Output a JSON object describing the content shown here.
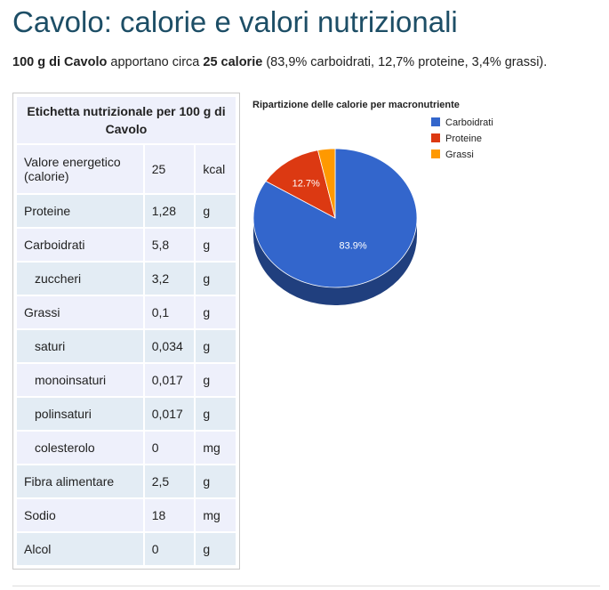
{
  "page": {
    "title": "Cavolo: calorie e valori nutrizionali",
    "summary": {
      "amount": "100 g di Cavolo",
      "text1": " apportano circa ",
      "calories": "25 calorie",
      "text2": " (83,9% carboidrati, 12,7% proteine, 3,4% grassi)."
    }
  },
  "nutrition_table": {
    "header": "Etichetta nutrizionale per 100 g di Cavolo",
    "rows": [
      {
        "name": "Valore energetico (calorie)",
        "value": "25",
        "unit": "kcal"
      },
      {
        "name": "Proteine",
        "value": "1,28",
        "unit": "g"
      },
      {
        "name": "Carboidrati",
        "value": "5,8",
        "unit": "g"
      },
      {
        "name": "zuccheri",
        "value": "3,2",
        "unit": "g"
      },
      {
        "name": "Grassi",
        "value": "0,1",
        "unit": "g"
      },
      {
        "name": "saturi",
        "value": "0,034",
        "unit": "g"
      },
      {
        "name": "monoinsaturi",
        "value": "0,017",
        "unit": "g"
      },
      {
        "name": "polinsaturi",
        "value": "0,017",
        "unit": "g"
      },
      {
        "name": "colesterolo",
        "value": "0",
        "unit": "mg"
      },
      {
        "name": "Fibra alimentare",
        "value": "2,5",
        "unit": "g"
      },
      {
        "name": "Sodio",
        "value": "18",
        "unit": "mg"
      },
      {
        "name": "Alcol",
        "value": "0",
        "unit": "g"
      }
    ]
  },
  "chart_data": {
    "type": "pie",
    "title": "Ripartizione delle calorie per macronutriente",
    "categories": [
      "Carboidrati",
      "Proteine",
      "Grassi"
    ],
    "values": [
      83.9,
      12.7,
      3.4
    ],
    "labels": [
      "83.9%",
      "12.7%",
      ""
    ],
    "colors": [
      "#3366cc",
      "#dc3912",
      "#ff9900"
    ],
    "legend": "right",
    "style": "3d"
  }
}
